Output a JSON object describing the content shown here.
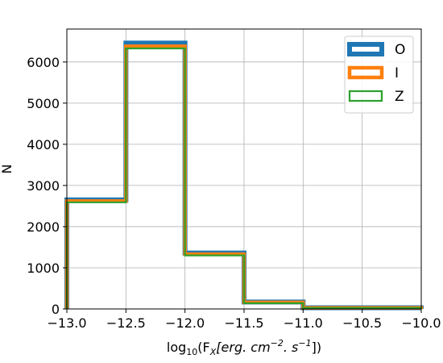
{
  "chart_data": {
    "type": "histogram",
    "x_bin_edges": [
      -13.0,
      -12.5,
      -12.0,
      -11.5,
      -11.0,
      -10.0
    ],
    "xlim": [
      -13.0,
      -10.0
    ],
    "ylim": [
      0,
      6800
    ],
    "x_ticks": [
      "−13.0",
      "−12.5",
      "−12.0",
      "−11.5",
      "−11.0",
      "−10.5",
      "−10.0"
    ],
    "x_tick_values": [
      -13.0,
      -12.5,
      -12.0,
      -11.5,
      -11.0,
      -10.5,
      -10.0
    ],
    "y_ticks": [
      "0",
      "1000",
      "2000",
      "3000",
      "4000",
      "5000",
      "6000"
    ],
    "y_tick_values": [
      0,
      1000,
      2000,
      3000,
      4000,
      5000,
      6000
    ],
    "xlabel_prefix": "log",
    "xlabel_sub": "10",
    "xlabel_body": "(F",
    "xlabel_body_sub": "X",
    "xlabel_italic": "[erg. cm",
    "xlabel_sup1": "−2",
    "xlabel_mid": ". s",
    "xlabel_sup2": "−1",
    "xlabel_end": "])",
    "ylabel": "N",
    "grid": true,
    "legend_position": "top-right",
    "series": [
      {
        "name": "O",
        "color": "#1f77b4",
        "values": [
          2650,
          6460,
          1360,
          170,
          30
        ]
      },
      {
        "name": "I",
        "color": "#ff7f0e",
        "values": [
          2620,
          6380,
          1330,
          160,
          28
        ]
      },
      {
        "name": "Z",
        "color": "#2ca02c",
        "values": [
          2590,
          6330,
          1300,
          140,
          25
        ]
      }
    ]
  }
}
